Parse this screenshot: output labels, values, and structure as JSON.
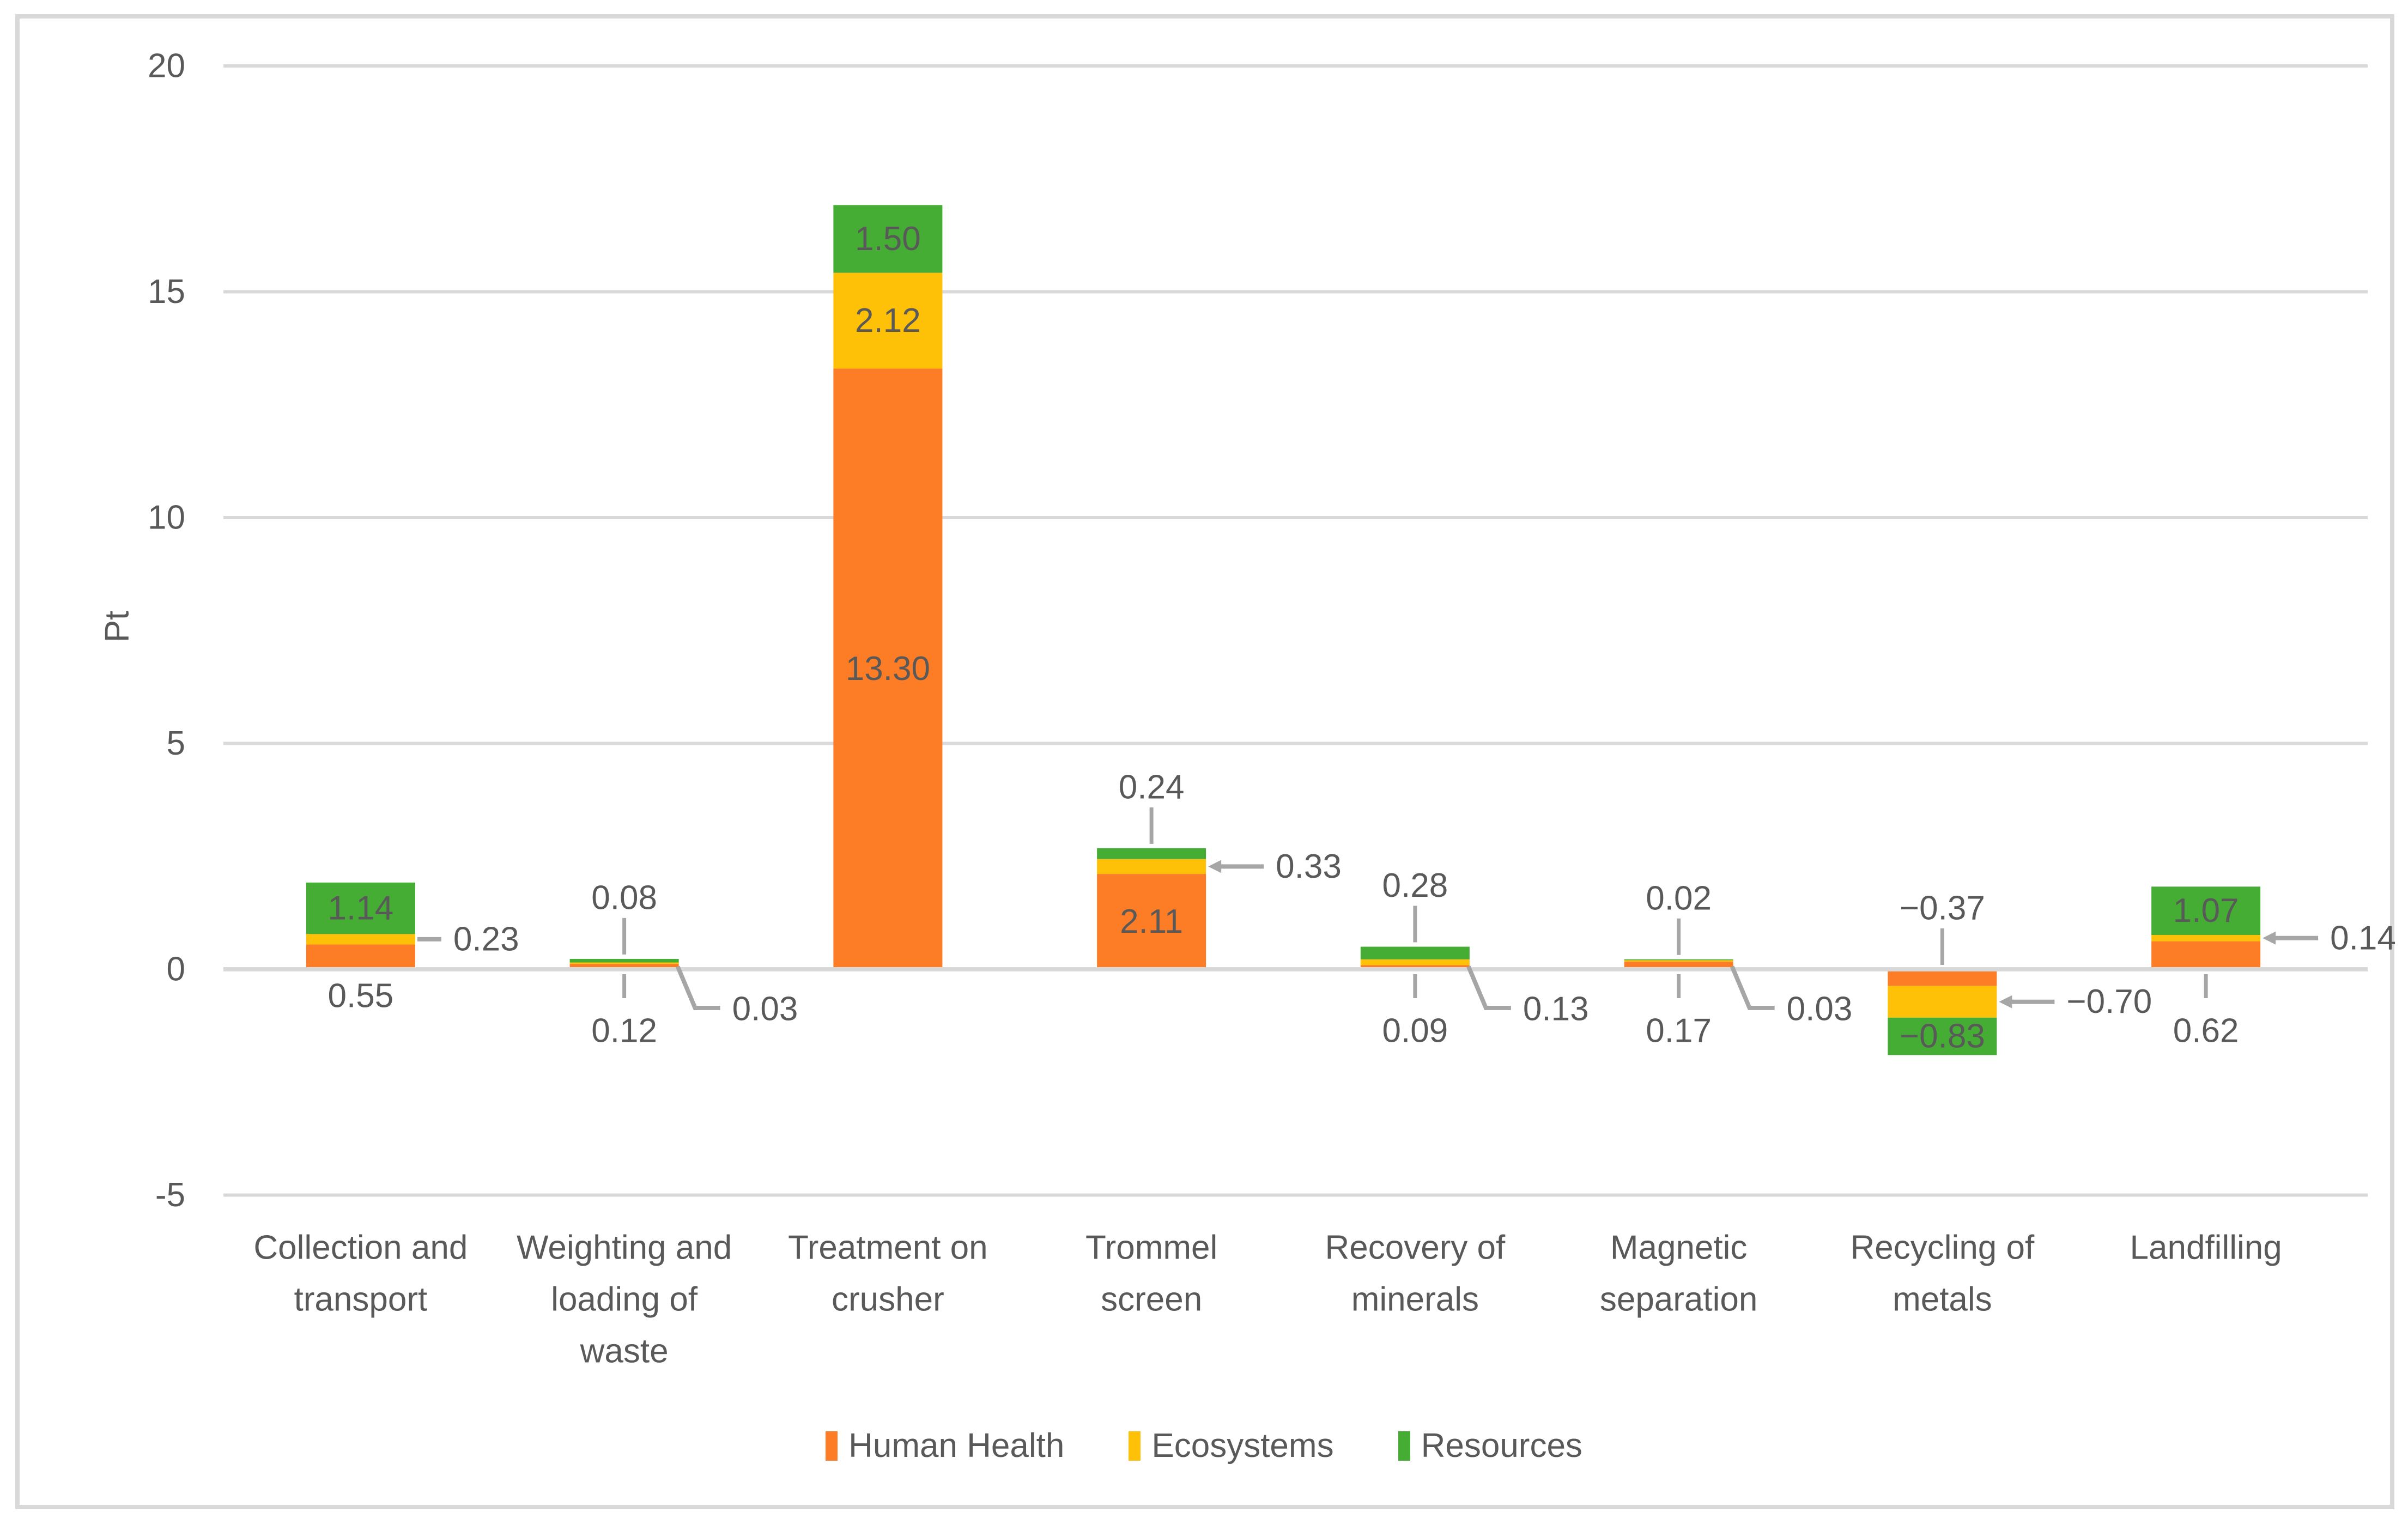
{
  "frame": {
    "border_color": "#D9D9D9",
    "background": "#FFFFFF"
  },
  "chart_data": {
    "type": "bar",
    "stacked": true,
    "title": "",
    "xlabel": "",
    "ylabel": "Pt",
    "ylim": [
      -5,
      20
    ],
    "yticks": [
      20,
      15,
      10,
      5,
      0,
      -5
    ],
    "grid": true,
    "legend_position": "bottom",
    "categories": [
      {
        "name": "Collection and transport",
        "label_lines": [
          "Collection and",
          "transport"
        ]
      },
      {
        "name": "Weighting and loading of waste",
        "label_lines": [
          "Weighting and",
          "loading of",
          "waste"
        ]
      },
      {
        "name": "Treatment on crusher",
        "label_lines": [
          "Treatment on",
          "crusher"
        ]
      },
      {
        "name": "Trommel screen",
        "label_lines": [
          "Trommel",
          "screen"
        ]
      },
      {
        "name": "Recovery of minerals",
        "label_lines": [
          "Recovery of",
          "minerals"
        ]
      },
      {
        "name": "Magnetic separation",
        "label_lines": [
          "Magnetic",
          "separation"
        ]
      },
      {
        "name": "Recycling of metals",
        "label_lines": [
          "Recycling of",
          "metals"
        ]
      },
      {
        "name": "Landfilling",
        "label_lines": [
          "Landfilling"
        ]
      }
    ],
    "series": [
      {
        "name": "Human Health",
        "color": "#FC7D25",
        "values": [
          0.55,
          0.12,
          13.3,
          2.11,
          0.09,
          0.17,
          -0.37,
          0.62
        ]
      },
      {
        "name": "Ecosystems",
        "color": "#FFC008",
        "values": [
          0.23,
          0.03,
          2.12,
          0.33,
          0.13,
          0.03,
          -0.7,
          0.14
        ]
      },
      {
        "name": "Resources",
        "color": "#45AC34",
        "values": [
          1.14,
          0.08,
          1.5,
          0.24,
          0.28,
          0.02,
          -0.83,
          1.07
        ]
      }
    ],
    "data_labels": [
      [
        {
          "text": "0.55",
          "placement": "below"
        },
        {
          "text": "0.12",
          "placement": "below-leader"
        },
        {
          "text": "13.30",
          "placement": "inside"
        },
        {
          "text": "2.11",
          "placement": "inside"
        },
        {
          "text": "0.09",
          "placement": "below-leader"
        },
        {
          "text": "0.17",
          "placement": "below-leader"
        },
        {
          "text": "−0.37",
          "placement": "above-leader"
        },
        {
          "text": "0.62",
          "placement": "below-leader"
        }
      ],
      [
        {
          "text": "0.23",
          "placement": "tick-right"
        },
        {
          "text": "0.03",
          "placement": "elbow-right"
        },
        {
          "text": "2.12",
          "placement": "inside"
        },
        {
          "text": "0.33",
          "placement": "arrow-right"
        },
        {
          "text": "0.13",
          "placement": "elbow-right"
        },
        {
          "text": "0.03",
          "placement": "elbow-right"
        },
        {
          "text": "−0.70",
          "placement": "arrow-right"
        },
        {
          "text": "0.14",
          "placement": "arrow-right"
        }
      ],
      [
        {
          "text": "1.14",
          "placement": "inside"
        },
        {
          "text": "0.08",
          "placement": "above-leader"
        },
        {
          "text": "1.50",
          "placement": "inside"
        },
        {
          "text": "0.24",
          "placement": "above-leader"
        },
        {
          "text": "0.28",
          "placement": "above-leader"
        },
        {
          "text": "0.02",
          "placement": "above-leader"
        },
        {
          "text": "−0.83",
          "placement": "inside"
        },
        {
          "text": "1.07",
          "placement": "inside"
        }
      ]
    ],
    "legend": {
      "items": [
        "Human Health",
        "Ecosystems",
        "Resources"
      ]
    },
    "style": {
      "gridline_color": "#D9D9D9",
      "axis_line_color": "#D9D9D9",
      "leader_color": "#A6A6A6",
      "text_color": "#595959",
      "font_size": 62
    }
  }
}
